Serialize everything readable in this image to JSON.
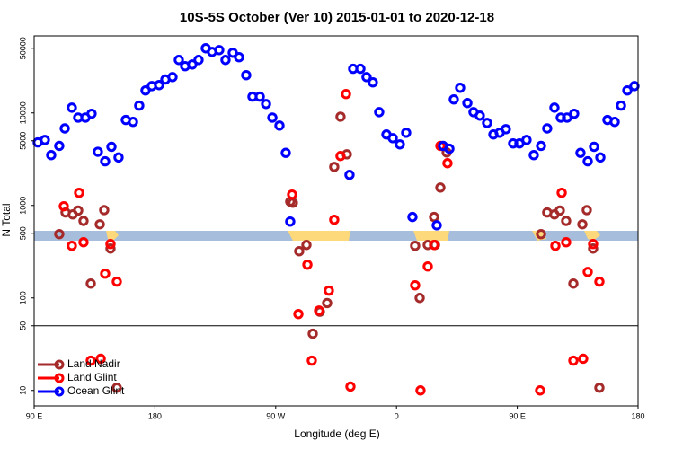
{
  "chart_data": {
    "type": "scatter",
    "title": "10S-5S October (Ver 10)   2015-01-01 to 2020-12-18",
    "x_label": "Longitude (deg E)",
    "y_label": "N Total",
    "xlim": [
      90,
      540
    ],
    "xticks": [
      {
        "value": 90,
        "label": "90 E"
      },
      180,
      {
        "value": 270,
        "label": "90 W"
      },
      {
        "value": 360,
        "label": "0"
      },
      {
        "value": 450,
        "label": "90 E"
      },
      180
    ],
    "ylim": [
      6.8,
      68000
    ],
    "yticks": [
      10,
      50,
      100,
      500,
      1000,
      5000,
      10000,
      50000
    ],
    "log_y": true,
    "hline": 50,
    "legend": "lower left",
    "series": [
      {
        "name": "Land Nadir",
        "color": "#a52a2a",
        "x": [
          108.7,
          113.4,
          118.8,
          122.8,
          126.8,
          132.2,
          138.9,
          142.2,
          146.9,
          151.6,
          280.8,
          282.8,
          287.5,
          292.9,
          297.6,
          302.9,
          308.3,
          313.6,
          318.3,
          323.0,
          373.9,
          377.3,
          383.3,
          388.7,
          388.0,
          392.7,
          397.4,
          467.7,
          472.3,
          477.7,
          481.7,
          486.4,
          491.8,
          498.5,
          501.8,
          506.5,
          511.2
        ],
        "values": [
          490,
          840,
          800,
          880,
          680,
          143,
          625,
          890,
          342,
          10.7,
          1100,
          1070,
          320,
          374,
          41,
          71,
          88,
          2610,
          9100,
          3570,
          366,
          100,
          374,
          374,
          750,
          1560,
          3740,
          490,
          840,
          800,
          880,
          680,
          143,
          625,
          890,
          342,
          10.7
        ]
      },
      {
        "name": "Land Glint",
        "color": "#ff0000",
        "x": [
          112.1,
          118.1,
          123.5,
          126.8,
          132.2,
          139.6,
          142.9,
          146.9,
          151.6,
          282.2,
          286.9,
          293.6,
          296.9,
          302.3,
          309.6,
          313.6,
          318.3,
          322.4,
          325.7,
          373.9,
          377.9,
          383.3,
          388.0,
          392.7,
          398.0,
          467.0,
          478.4,
          483.1,
          486.4,
          491.8,
          499.1,
          502.5,
          506.5,
          511.2
        ],
        "values": [
          980,
          366,
          1370,
          400,
          21,
          22,
          183,
          383,
          150,
          1310,
          67,
          229,
          21,
          73,
          120,
          700,
          3420,
          16000,
          11,
          137,
          10,
          219,
          374,
          4400,
          2860,
          10,
          366,
          1370,
          400,
          21,
          22,
          191,
          383,
          150
        ]
      },
      {
        "name": "Ocean Glint",
        "color": "#0000ff",
        "x": [
          92.7,
          98.0,
          102.7,
          108.7,
          112.8,
          118.1,
          122.8,
          128.2,
          132.8,
          137.5,
          142.9,
          147.6,
          152.9,
          158.3,
          163.7,
          168.3,
          173.0,
          177.7,
          183.1,
          187.8,
          193.1,
          197.8,
          202.5,
          207.8,
          212.5,
          217.9,
          222.6,
          227.9,
          232.6,
          238.0,
          242.7,
          248.0,
          252.7,
          258.1,
          262.8,
          267.5,
          272.8,
          277.5,
          280.8,
          325.0,
          327.7,
          333.1,
          337.7,
          342.4,
          347.1,
          352.5,
          357.2,
          362.5,
          367.2,
          371.9,
          390.0,
          394.7,
          399.4,
          402.7,
          407.4,
          412.8,
          417.4,
          422.1,
          427.5,
          432.2,
          436.9,
          441.5,
          446.9,
          451.6,
          456.9,
          462.3,
          467.7,
          472.3,
          477.7,
          482.4,
          487.1,
          492.4,
          497.1,
          502.5,
          507.2,
          511.9,
          517.2,
          522.6,
          527.3,
          532.0,
          537.3
        ],
        "values": [
          4800,
          5100,
          3500,
          4400,
          6800,
          11400,
          8900,
          8900,
          9800,
          3800,
          3000,
          4300,
          3300,
          8400,
          8000,
          12000,
          17500,
          19500,
          20000,
          23000,
          24400,
          37400,
          32000,
          33400,
          37400,
          50000,
          45700,
          47800,
          37400,
          44700,
          40000,
          25600,
          15000,
          15000,
          12500,
          8900,
          7300,
          3700,
          670,
          2140,
          30000,
          30000,
          24400,
          21400,
          10200,
          5850,
          5340,
          4570,
          6110,
          750,
          610,
          4400,
          4100,
          14000,
          18700,
          12800,
          10200,
          9350,
          7800,
          5850,
          6110,
          6680,
          4680,
          4680,
          5100,
          3500,
          4400,
          6800,
          11400,
          8900,
          8900,
          9800,
          3700,
          3000,
          4300,
          3300,
          8400,
          8000,
          12000,
          17500,
          19500
        ]
      }
    ]
  }
}
